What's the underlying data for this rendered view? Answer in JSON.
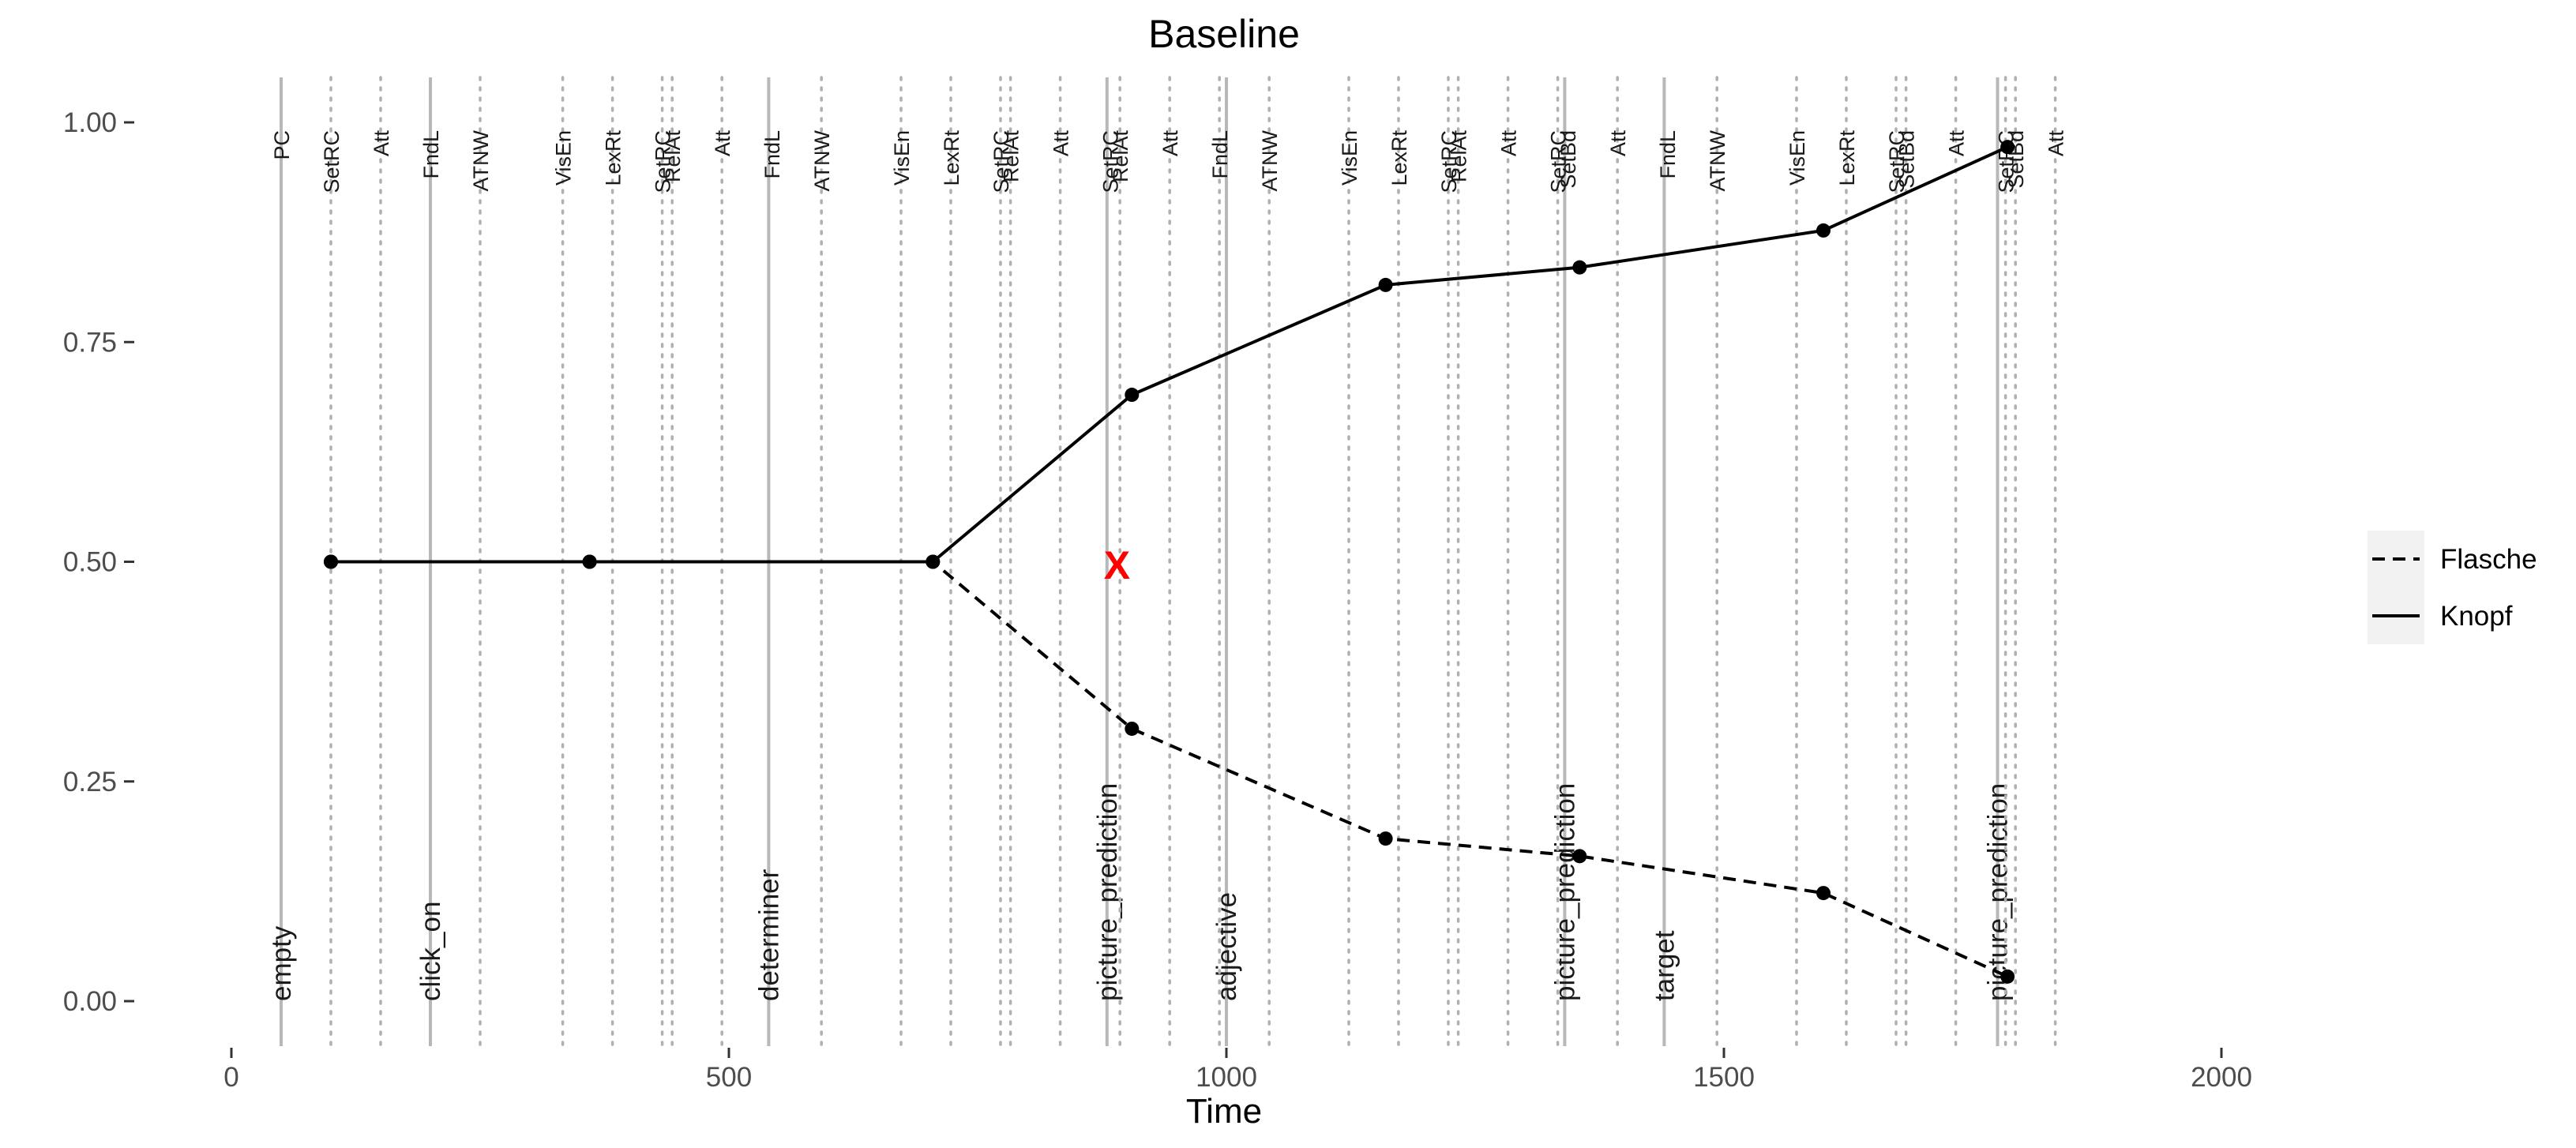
{
  "chart_data": {
    "type": "line",
    "title": "Baseline",
    "xlabel": "Time",
    "ylabel": "",
    "xlim": [
      -60,
      2260
    ],
    "ylim": [
      -0.05,
      1.05
    ],
    "x_ticks": [
      0,
      500,
      1000,
      1500,
      2000
    ],
    "x_tick_labels": [
      "0",
      "500",
      "1000",
      "1500",
      "2000"
    ],
    "y_ticks": [
      0,
      0.25,
      0.5,
      0.75,
      1.0
    ],
    "y_tick_labels": [
      "0.00",
      "0.25",
      "0.50",
      "0.75",
      "1.00"
    ],
    "grid": false,
    "legend_position": "right",
    "series": [
      {
        "name": "Flasche",
        "linetype": "dashed",
        "x": [
          100,
          360,
          705,
          905,
          1160,
          1355,
          1600,
          1785
        ],
        "y": [
          0.5,
          0.5,
          0.5,
          0.31,
          0.185,
          0.165,
          0.123,
          0.028
        ]
      },
      {
        "name": "Knopf",
        "linetype": "solid",
        "x": [
          100,
          360,
          705,
          905,
          1160,
          1355,
          1600,
          1785
        ],
        "y": [
          0.5,
          0.5,
          0.5,
          0.69,
          0.815,
          0.835,
          0.877,
          0.972
        ]
      }
    ],
    "marker": {
      "x": 890,
      "y": 0.497,
      "label": "X",
      "color": "#ff0000"
    },
    "phase_lines": [
      {
        "x": 50,
        "label": "empty"
      },
      {
        "x": 200,
        "label": "click_on"
      },
      {
        "x": 540,
        "label": "determiner"
      },
      {
        "x": 880,
        "label": "picture_prediction"
      },
      {
        "x": 1000,
        "label": "adjective"
      },
      {
        "x": 1340,
        "label": "picture_prediction"
      },
      {
        "x": 1440,
        "label": "target"
      },
      {
        "x": 1775,
        "label": "picture_prediction"
      }
    ],
    "event_lines": [
      {
        "x": 50,
        "label": "PC"
      },
      {
        "x": 100,
        "label": "SetRC"
      },
      {
        "x": 150,
        "label": "Att"
      },
      {
        "x": 200,
        "label": "FndL"
      },
      {
        "x": 250,
        "label": "ATNW"
      },
      {
        "x": 333,
        "label": "VisEn"
      },
      {
        "x": 383,
        "label": "LexRt"
      },
      {
        "x": 433,
        "label": "SetRC"
      },
      {
        "x": 443,
        "label": "RelAt"
      },
      {
        "x": 493,
        "label": "Att"
      },
      {
        "x": 543,
        "label": "FndL"
      },
      {
        "x": 593,
        "label": "ATNW"
      },
      {
        "x": 673,
        "label": "VisEn"
      },
      {
        "x": 723,
        "label": "LexRt"
      },
      {
        "x": 773,
        "label": "SetRC"
      },
      {
        "x": 783,
        "label": "RelAt"
      },
      {
        "x": 833,
        "label": "Att"
      },
      {
        "x": 883,
        "label": "SetRC"
      },
      {
        "x": 893,
        "label": "RelAt"
      },
      {
        "x": 943,
        "label": "Att"
      },
      {
        "x": 993,
        "label": "FndL"
      },
      {
        "x": 1043,
        "label": "ATNW"
      },
      {
        "x": 1123,
        "label": "VisEn"
      },
      {
        "x": 1173,
        "label": "LexRt"
      },
      {
        "x": 1223,
        "label": "SetRC"
      },
      {
        "x": 1233,
        "label": "RelAt"
      },
      {
        "x": 1283,
        "label": "Att"
      },
      {
        "x": 1333,
        "label": "SetRC"
      },
      {
        "x": 1343,
        "label": "SetBd"
      },
      {
        "x": 1393,
        "label": "Att"
      },
      {
        "x": 1443,
        "label": "FndL"
      },
      {
        "x": 1493,
        "label": "ATNW"
      },
      {
        "x": 1573,
        "label": "VisEn"
      },
      {
        "x": 1623,
        "label": "LexRt"
      },
      {
        "x": 1673,
        "label": "SetRC"
      },
      {
        "x": 1683,
        "label": "SetBd"
      },
      {
        "x": 1733,
        "label": "Att"
      },
      {
        "x": 1783,
        "label": "SetRC"
      },
      {
        "x": 1793,
        "label": "SetBd"
      },
      {
        "x": 1833,
        "label": "Att"
      }
    ]
  }
}
